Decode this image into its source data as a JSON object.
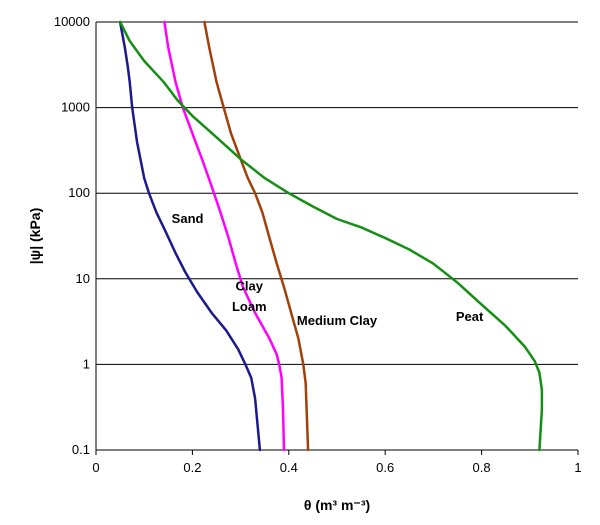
{
  "chart_data": {
    "type": "line",
    "title": "",
    "xlabel": "θ (m³ m⁻³)",
    "ylabel": "|ψ| (kPa)",
    "xlim": [
      0,
      1
    ],
    "ylim": [
      0.1,
      10000
    ],
    "yscale": "log",
    "grid": "horizontal",
    "x_ticks": [
      "0",
      "0.2",
      "0.4",
      "0.6",
      "0.8",
      "1"
    ],
    "y_ticks": [
      "0.1",
      "1",
      "10",
      "100",
      "1000",
      "10000"
    ],
    "series": [
      {
        "name": "Sand",
        "color": "#1a1a8c",
        "points": [
          [
            0.05,
            10000
          ],
          [
            0.06,
            5000
          ],
          [
            0.066,
            3000
          ],
          [
            0.07,
            2000
          ],
          [
            0.075,
            1000
          ],
          [
            0.085,
            400
          ],
          [
            0.1,
            150
          ],
          [
            0.11,
            100
          ],
          [
            0.125,
            60
          ],
          [
            0.145,
            35
          ],
          [
            0.165,
            20
          ],
          [
            0.185,
            12
          ],
          [
            0.21,
            7
          ],
          [
            0.24,
            4
          ],
          [
            0.27,
            2.5
          ],
          [
            0.295,
            1.5
          ],
          [
            0.31,
            1
          ],
          [
            0.322,
            0.7
          ],
          [
            0.33,
            0.4
          ],
          [
            0.335,
            0.2
          ],
          [
            0.34,
            0.1
          ]
        ]
      },
      {
        "name": "Clay Loam",
        "color": "#ff00ff",
        "points": [
          [
            0.142,
            10000
          ],
          [
            0.15,
            5000
          ],
          [
            0.165,
            2000
          ],
          [
            0.18,
            1000
          ],
          [
            0.2,
            500
          ],
          [
            0.22,
            250
          ],
          [
            0.24,
            120
          ],
          [
            0.258,
            60
          ],
          [
            0.275,
            30
          ],
          [
            0.29,
            15
          ],
          [
            0.305,
            8
          ],
          [
            0.33,
            4
          ],
          [
            0.36,
            2
          ],
          [
            0.375,
            1.3
          ],
          [
            0.38,
            1
          ],
          [
            0.385,
            0.7
          ],
          [
            0.388,
            0.3
          ],
          [
            0.39,
            0.1
          ]
        ]
      },
      {
        "name": "Medium Clay",
        "color": "#a0400a",
        "points": [
          [
            0.225,
            10000
          ],
          [
            0.235,
            5000
          ],
          [
            0.25,
            2000
          ],
          [
            0.265,
            1000
          ],
          [
            0.28,
            500
          ],
          [
            0.3,
            250
          ],
          [
            0.315,
            150
          ],
          [
            0.33,
            100
          ],
          [
            0.345,
            60
          ],
          [
            0.36,
            30
          ],
          [
            0.375,
            15
          ],
          [
            0.39,
            8
          ],
          [
            0.405,
            4
          ],
          [
            0.42,
            2
          ],
          [
            0.43,
            1
          ],
          [
            0.435,
            0.6
          ],
          [
            0.437,
            0.3
          ],
          [
            0.44,
            0.1
          ]
        ]
      },
      {
        "name": "Peat",
        "color": "#138f13",
        "points": [
          [
            0.05,
            10000
          ],
          [
            0.07,
            6000
          ],
          [
            0.1,
            3500
          ],
          [
            0.14,
            2000
          ],
          [
            0.17,
            1200
          ],
          [
            0.2,
            800
          ],
          [
            0.25,
            450
          ],
          [
            0.3,
            250
          ],
          [
            0.35,
            150
          ],
          [
            0.4,
            100
          ],
          [
            0.45,
            70
          ],
          [
            0.5,
            50
          ],
          [
            0.55,
            40
          ],
          [
            0.6,
            30
          ],
          [
            0.65,
            22
          ],
          [
            0.7,
            15
          ],
          [
            0.75,
            9
          ],
          [
            0.8,
            5
          ],
          [
            0.85,
            2.8
          ],
          [
            0.89,
            1.6
          ],
          [
            0.91,
            1.1
          ],
          [
            0.92,
            0.8
          ],
          [
            0.925,
            0.5
          ],
          [
            0.925,
            0.3
          ],
          [
            0.92,
            0.1
          ]
        ]
      }
    ],
    "annotations": [
      {
        "text": "Sand",
        "series": "Sand",
        "x": 0.19,
        "y": 45
      },
      {
        "text": "Clay",
        "series": "Clay Loam",
        "x": 0.318,
        "y": 7.3
      },
      {
        "text": "Loam",
        "series": "Clay Loam",
        "x": 0.318,
        "y": 4.2
      },
      {
        "text": "Medium Clay",
        "series": "Medium Clay",
        "x": 0.5,
        "y": 2.9
      },
      {
        "text": "Peat",
        "series": "Peat",
        "x": 0.775,
        "y": 3.2
      }
    ]
  }
}
